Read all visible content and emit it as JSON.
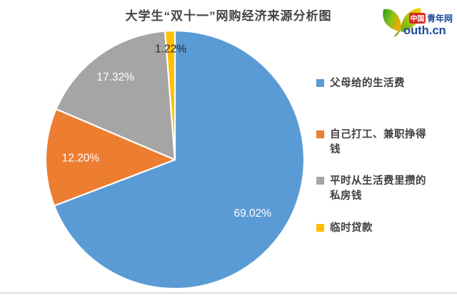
{
  "title": "大学生“双十一”网购经济来源分析图",
  "logo": {
    "badge": "中国",
    "site_name": "青年网",
    "domain_text": "outh.cn",
    "leaf_green": "#33a02c",
    "leaf_yellow": "#ffcc00",
    "badge_red": "#d9251c",
    "text_blue": "#1b4a9b"
  },
  "chart_data": {
    "type": "pie",
    "title": "大学生“双十一”网购经济来源分析图",
    "start_angle": "12-oclock",
    "direction": "clockwise",
    "legend_position": "right",
    "slices": [
      {
        "label": "父母给的生活费",
        "value": 69.02,
        "display": "69.02%",
        "color": "#5B9BD5",
        "label_color": "#ffffff"
      },
      {
        "label": "自己打工、兼职挣得钱",
        "value": 12.2,
        "display": "12.20%",
        "color": "#ED7D31",
        "label_color": "#ffffff"
      },
      {
        "label": "平时从生活费里攒的私房钱",
        "value": 17.32,
        "display": "17.32%",
        "color": "#A5A5A5",
        "label_color": "#ffffff"
      },
      {
        "label": "临时贷款",
        "value": 1.22,
        "display": "1.22%",
        "color": "#FFC000",
        "label_color": "#262626"
      }
    ]
  }
}
